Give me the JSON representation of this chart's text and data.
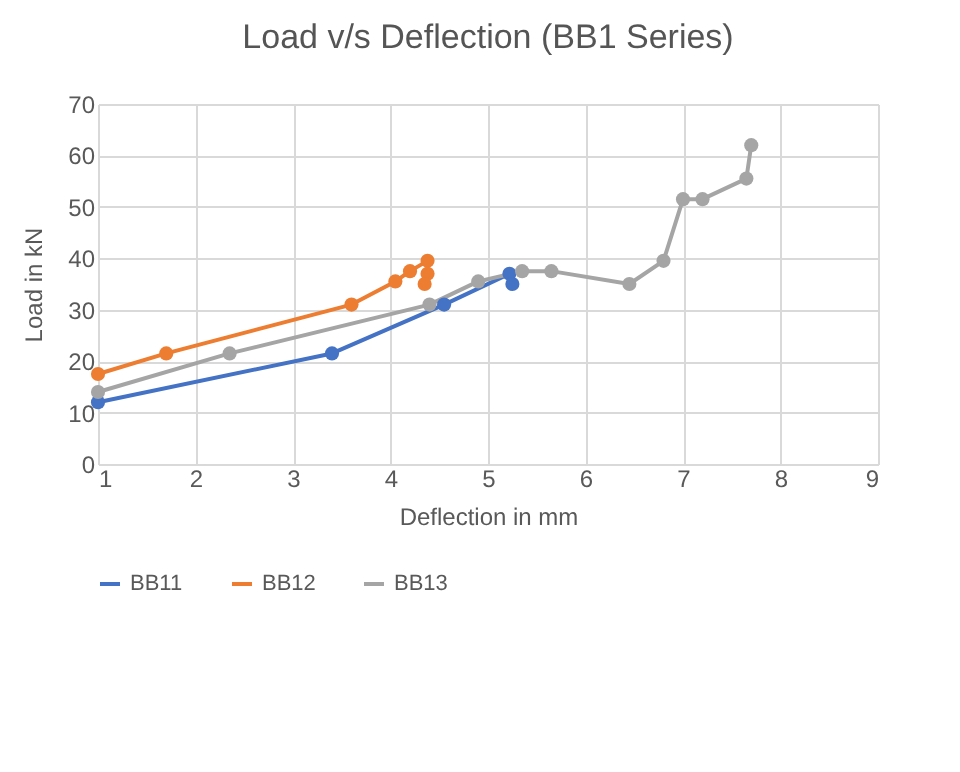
{
  "chart_data": {
    "type": "line",
    "title": "Load v/s Deflection (BB1 Series)",
    "xlabel": "Deflection in mm",
    "ylabel": "Load in kN",
    "xlim": [
      1,
      9
    ],
    "xticks": [
      1,
      2,
      3,
      4,
      5,
      6,
      7,
      8,
      9
    ],
    "ylim": [
      0,
      70
    ],
    "yticks": [
      0,
      10,
      20,
      30,
      40,
      50,
      60,
      70
    ],
    "grid": true,
    "legend": "bottom",
    "marker": "circle",
    "line_style": "solid",
    "series": [
      {
        "name": "BB11",
        "color": "#4472c4",
        "x": [
          1,
          3.4,
          4.55,
          5.22,
          5.25
        ],
        "values": [
          12,
          21.5,
          31,
          37,
          35
        ]
      },
      {
        "name": "BB12",
        "color": "#ed7d31",
        "x": [
          1,
          1.7,
          3.6,
          4.05,
          4.2,
          4.38,
          4.38,
          4.35
        ],
        "values": [
          17.5,
          21.5,
          31,
          35.5,
          37.5,
          39.5,
          37,
          35
        ]
      },
      {
        "name": "BB13",
        "color": "#a5a5a5",
        "x": [
          1,
          2.35,
          4.4,
          4.9,
          5.35,
          5.65,
          6.45,
          6.8,
          7,
          7.2,
          7.65,
          7.7
        ],
        "values": [
          14,
          21.5,
          31,
          35.5,
          37.5,
          37.5,
          35,
          39.5,
          51.5,
          51.5,
          55.5,
          62
        ]
      }
    ]
  }
}
